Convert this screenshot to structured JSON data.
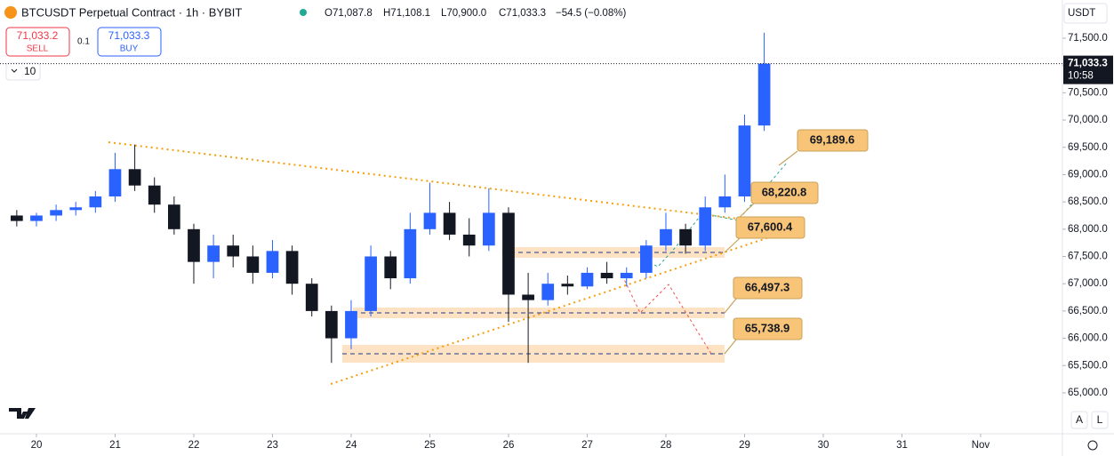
{
  "header": {
    "symbol": "BTCUSDT Perpetual Contract · 1h · BYBIT",
    "open": "O71,087.8",
    "high": "H71,108.1",
    "low": "L70,900.0",
    "close": "C71,033.3",
    "change": "−54.5 (−0.08%)"
  },
  "trade": {
    "sell_price": "71,033.2",
    "sell": "SELL",
    "spread": "0.1",
    "buy_price": "71,033.3",
    "buy": "BUY"
  },
  "indicators": "10",
  "currency": "USDT",
  "scale_buttons": [
    "A",
    "L"
  ],
  "annotations": [
    "69,189.6",
    "68,220.8",
    "67,600.4",
    "66,497.3",
    "65,738.9"
  ],
  "chart_data": {
    "type": "candlestick",
    "x": [
      19.75,
      20.0,
      20.25,
      20.5,
      20.75,
      21.0,
      21.25,
      21.5,
      21.75,
      22.0,
      22.25,
      22.5,
      22.75,
      23.0,
      23.25,
      23.5,
      23.75,
      24.0,
      24.25,
      24.5,
      24.75,
      25.0,
      25.25,
      25.5,
      25.75,
      26.0,
      26.25,
      26.5,
      26.75,
      27.0,
      27.25,
      27.5,
      27.75,
      28.0,
      28.25,
      28.5,
      28.75,
      29.0,
      29.25
    ],
    "open": [
      68250,
      68150,
      68250,
      68350,
      68400,
      68600,
      69100,
      68800,
      68450,
      68000,
      67400,
      67700,
      67500,
      67200,
      67600,
      67000,
      66500,
      66000,
      66500,
      67500,
      67100,
      68000,
      68300,
      67900,
      67700,
      68300,
      66800,
      66700,
      67000,
      66950,
      67200,
      67100,
      67200,
      67700,
      68000,
      67700,
      68400,
      68600,
      69900
    ],
    "high": [
      68350,
      68300,
      68450,
      68500,
      68700,
      69400,
      69550,
      68950,
      68600,
      68100,
      67900,
      67900,
      67700,
      67800,
      67700,
      67100,
      66600,
      66700,
      67700,
      67600,
      68300,
      68850,
      68500,
      68200,
      68750,
      68400,
      67200,
      67200,
      67150,
      67300,
      67400,
      67300,
      67800,
      68300,
      68100,
      68600,
      69000,
      70100,
      71600
    ],
    "low": [
      68050,
      68050,
      68150,
      68250,
      68300,
      68500,
      68700,
      68300,
      67900,
      67000,
      67100,
      67300,
      67000,
      67100,
      66800,
      66400,
      65550,
      65800,
      66400,
      66900,
      67000,
      67900,
      67800,
      67500,
      67600,
      66300,
      65550,
      66600,
      66800,
      66900,
      67000,
      66950,
      67100,
      67600,
      67550,
      67600,
      68300,
      68500,
      69800
    ],
    "close": [
      68150,
      68250,
      68350,
      68400,
      68600,
      69100,
      68800,
      68450,
      68000,
      67400,
      67700,
      67500,
      67200,
      67600,
      67000,
      66500,
      66000,
      66500,
      67500,
      67100,
      68000,
      68300,
      67900,
      67700,
      68300,
      66800,
      66700,
      67000,
      66950,
      67200,
      67100,
      67200,
      67700,
      68000,
      67700,
      68400,
      68600,
      69900,
      71033.3
    ],
    "up_color": "#2962ff",
    "down_color": "#131722",
    "xlim": [
      19.537,
      33.04
    ],
    "xticks": [
      {
        "value": 20,
        "label": "20"
      },
      {
        "value": 21,
        "label": "21"
      },
      {
        "value": 22,
        "label": "22"
      },
      {
        "value": 23,
        "label": "23"
      },
      {
        "value": 24,
        "label": "24"
      },
      {
        "value": 25,
        "label": "25"
      },
      {
        "value": 26,
        "label": "26"
      },
      {
        "value": 27,
        "label": "27"
      },
      {
        "value": 28,
        "label": "28"
      },
      {
        "value": 29,
        "label": "29"
      },
      {
        "value": 30,
        "label": "30"
      },
      {
        "value": 31,
        "label": "31"
      },
      {
        "value": 32,
        "label": "Nov"
      }
    ],
    "ylim": [
      64250,
      72200
    ],
    "yticks": [
      {
        "value": 71500,
        "label": "71,500.0"
      },
      {
        "value": 71000,
        "label": "71,000.0"
      },
      {
        "value": 70500,
        "label": "70,500.0"
      },
      {
        "value": 70000,
        "label": "70,000.0"
      },
      {
        "value": 69500,
        "label": "69,500.0"
      },
      {
        "value": 69000,
        "label": "69,000.0"
      },
      {
        "value": 68500,
        "label": "68,500.0"
      },
      {
        "value": 68000,
        "label": "68,000.0"
      },
      {
        "value": 67500,
        "label": "67,500.0"
      },
      {
        "value": 67000,
        "label": "67,000.0"
      },
      {
        "value": 66500,
        "label": "66,500.0"
      },
      {
        "value": 66000,
        "label": "66,000.0"
      },
      {
        "value": 65500,
        "label": "65,500.0"
      },
      {
        "value": 65000,
        "label": "65,000.0"
      }
    ],
    "last_price": {
      "value": 71033.3,
      "label": "71,033.3"
    },
    "countdown": "10:58"
  }
}
